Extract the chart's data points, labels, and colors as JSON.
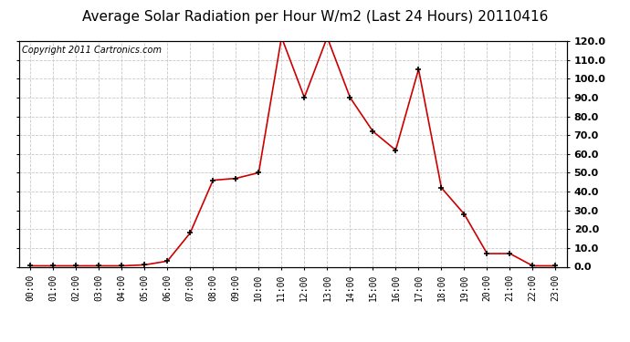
{
  "title": "Average Solar Radiation per Hour W/m2 (Last 24 Hours) 20110416",
  "copyright_text": "Copyright 2011 Cartronics.com",
  "hours": [
    "00:00",
    "01:00",
    "02:00",
    "03:00",
    "04:00",
    "05:00",
    "06:00",
    "07:00",
    "08:00",
    "09:00",
    "10:00",
    "11:00",
    "12:00",
    "13:00",
    "14:00",
    "15:00",
    "16:00",
    "17:00",
    "18:00",
    "19:00",
    "20:00",
    "21:00",
    "22:00",
    "23:00"
  ],
  "values": [
    0.5,
    0.5,
    0.5,
    0.5,
    0.5,
    1.0,
    3.0,
    18.0,
    46.0,
    47.0,
    50.0,
    122.0,
    90.0,
    122.0,
    90.0,
    72.0,
    62.0,
    105.0,
    42.0,
    28.0,
    7.0,
    7.0,
    0.5,
    0.5
  ],
  "line_color": "#cc0000",
  "marker_color": "black",
  "bg_color": "#ffffff",
  "plot_bg_color": "#ffffff",
  "grid_color": "#c8c8c8",
  "title_fontsize": 11,
  "copyright_fontsize": 7,
  "ylim": [
    0.0,
    120.0
  ],
  "yticks": [
    0.0,
    10.0,
    20.0,
    30.0,
    40.0,
    50.0,
    60.0,
    70.0,
    80.0,
    90.0,
    100.0,
    110.0,
    120.0
  ]
}
